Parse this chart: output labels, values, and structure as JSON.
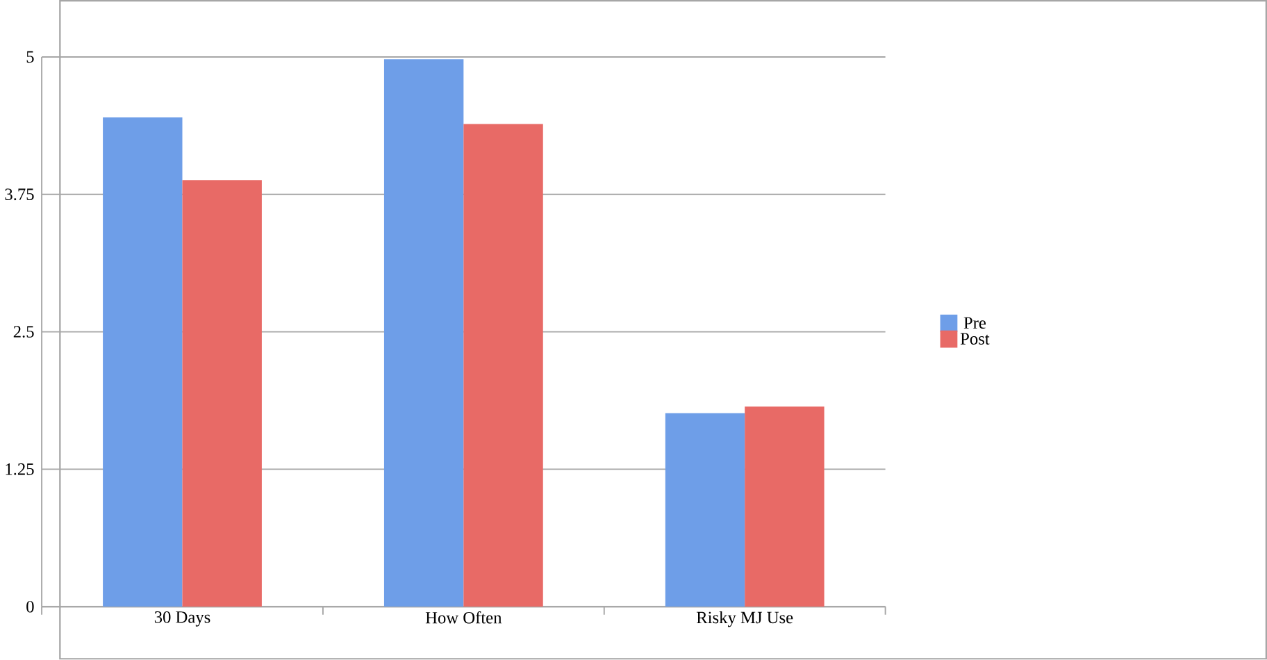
{
  "chart_data": {
    "type": "bar",
    "categories": [
      "30 Days",
      "How Often",
      "Risky MJ Use"
    ],
    "series": [
      {
        "name": "Pre",
        "color": "#6e9ee8",
        "values": [
          4.45,
          4.98,
          1.76
        ]
      },
      {
        "name": "Post",
        "color": "#e86a66",
        "values": [
          3.88,
          4.39,
          1.82
        ]
      }
    ],
    "ylim": [
      0,
      5
    ],
    "yticks": [
      0,
      1.25,
      2.5,
      3.75,
      5
    ],
    "grid": "y",
    "legend": "right"
  }
}
